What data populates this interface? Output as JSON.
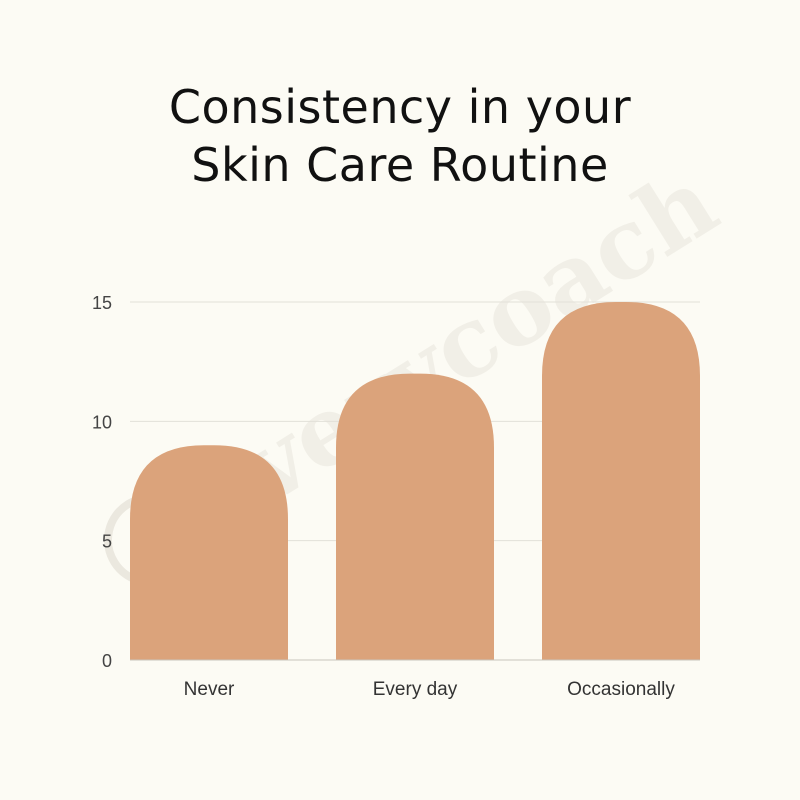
{
  "title_lines": [
    "Consistency in your",
    "Skin Care Routine"
  ],
  "watermark": "everycoach",
  "colors": {
    "background": "#fcfbf4",
    "bar": "#dba37b",
    "grid": "#e2e0d8",
    "axis": "#c9c6bd"
  },
  "chart_data": {
    "type": "bar",
    "title": "Consistency in your Skin Care Routine",
    "categories": [
      "Never",
      "Every day",
      "Occasionally"
    ],
    "values": [
      9,
      12,
      15
    ],
    "xlabel": "",
    "ylabel": "",
    "ylim": [
      0,
      15
    ],
    "yticks": [
      0,
      5,
      10,
      15
    ],
    "grid": true,
    "legend": "none"
  }
}
